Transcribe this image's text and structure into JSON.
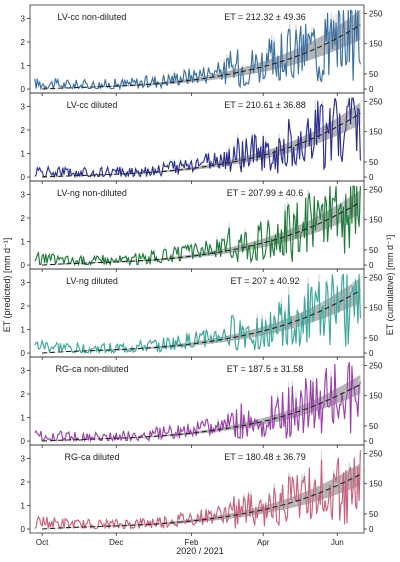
{
  "chart_data": {
    "type": "line",
    "xlabel": "2020 / 2021",
    "ylabel_left": "ET (predicted) [mm d⁻¹]",
    "ylabel_right": "ET (cumulative) [mm d⁻¹]",
    "x_ticks": [
      "Oct",
      "Dec",
      "Feb",
      "Apr",
      "Jun"
    ],
    "x_tick_days": [
      0,
      61,
      123,
      182,
      243
    ],
    "x_range_days": [
      -10,
      265
    ],
    "y_left": {
      "ticks": [
        0,
        1,
        2,
        3
      ],
      "range": [
        0,
        3.4
      ]
    },
    "y_right": {
      "ticks": [
        0,
        50,
        150,
        250
      ],
      "range": [
        0,
        265
      ]
    },
    "grid": false,
    "band_color": "#a8a8a8",
    "mean_line_color": "#222222",
    "panels": [
      {
        "label": "LV-cc non-diluted",
        "et_text": "ET = 212.32 ± 49.36",
        "color": "#3b6f9e",
        "daily_trend": [
          [
            0,
            0.22
          ],
          [
            30,
            0.15
          ],
          [
            60,
            0.18
          ],
          [
            90,
            0.3
          ],
          [
            120,
            0.55
          ],
          [
            150,
            0.8
          ],
          [
            180,
            1.1
          ],
          [
            210,
            1.6
          ],
          [
            240,
            2.3
          ],
          [
            265,
            2.8
          ]
        ],
        "cumulative": {
          "total": 212.32,
          "sd": 49.36
        }
      },
      {
        "label": "LV-cc diluted",
        "et_text": "ET = 210.61 ± 36.88",
        "color": "#2c2c8c",
        "daily_trend": [
          [
            0,
            0.2
          ],
          [
            30,
            0.14
          ],
          [
            60,
            0.17
          ],
          [
            90,
            0.28
          ],
          [
            120,
            0.5
          ],
          [
            150,
            0.75
          ],
          [
            180,
            1.05
          ],
          [
            210,
            1.55
          ],
          [
            240,
            2.2
          ],
          [
            265,
            2.7
          ]
        ],
        "cumulative": {
          "total": 210.61,
          "sd": 36.88
        }
      },
      {
        "label": "LV-ng non-diluted",
        "et_text": "ET = 207.99 ± 40.6",
        "color": "#1f7a3a",
        "daily_trend": [
          [
            0,
            0.25
          ],
          [
            30,
            0.16
          ],
          [
            60,
            0.18
          ],
          [
            90,
            0.3
          ],
          [
            120,
            0.52
          ],
          [
            150,
            0.78
          ],
          [
            180,
            1.1
          ],
          [
            210,
            1.6
          ],
          [
            240,
            2.25
          ],
          [
            265,
            2.6
          ]
        ],
        "cumulative": {
          "total": 207.99,
          "sd": 40.6
        }
      },
      {
        "label": "LV-ng diluted",
        "et_text": "ET = 207 ± 40.92",
        "color": "#3aa79a",
        "daily_trend": [
          [
            0,
            0.3
          ],
          [
            30,
            0.16
          ],
          [
            60,
            0.18
          ],
          [
            90,
            0.29
          ],
          [
            120,
            0.5
          ],
          [
            150,
            0.75
          ],
          [
            180,
            1.05
          ],
          [
            210,
            1.55
          ],
          [
            240,
            2.2
          ],
          [
            265,
            2.5
          ]
        ],
        "cumulative": {
          "total": 207,
          "sd": 40.92
        }
      },
      {
        "label": "RG-ca non-diluted",
        "et_text": "ET = 187.5 ± 31.58",
        "color": "#9a3fa8",
        "daily_trend": [
          [
            0,
            0.2
          ],
          [
            30,
            0.14
          ],
          [
            60,
            0.16
          ],
          [
            90,
            0.26
          ],
          [
            120,
            0.45
          ],
          [
            150,
            0.68
          ],
          [
            180,
            0.95
          ],
          [
            210,
            1.4
          ],
          [
            240,
            2.0
          ],
          [
            265,
            2.3
          ]
        ],
        "cumulative": {
          "total": 187.5,
          "sd": 31.58
        }
      },
      {
        "label": "RG-ca diluted",
        "et_text": "ET = 180.48 ± 36.79",
        "color": "#c8607a",
        "daily_trend": [
          [
            0,
            0.28
          ],
          [
            30,
            0.15
          ],
          [
            60,
            0.16
          ],
          [
            90,
            0.25
          ],
          [
            120,
            0.42
          ],
          [
            150,
            0.65
          ],
          [
            180,
            0.9
          ],
          [
            210,
            1.35
          ],
          [
            240,
            1.9
          ],
          [
            265,
            2.2
          ]
        ],
        "cumulative": {
          "total": 180.48,
          "sd": 36.79
        }
      }
    ]
  }
}
